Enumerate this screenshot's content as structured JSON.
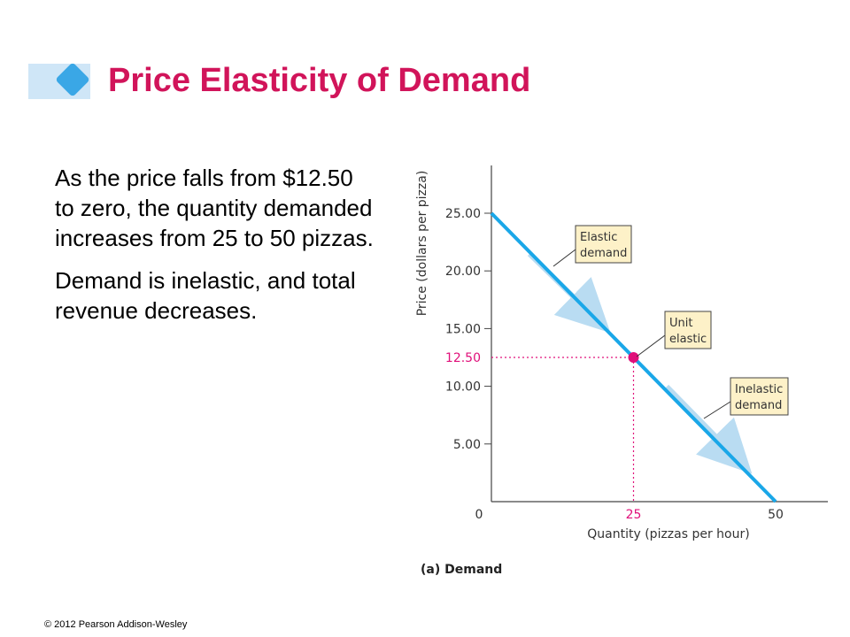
{
  "slide": {
    "title": "Price Elasticity of Demand",
    "paragraphs": [
      "As the price falls from $12.50 to zero, the quantity demanded increases from 25 to 50 pizzas.",
      "Demand is inelastic, and total revenue decreases."
    ],
    "copyright": "© 2012 Pearson Addison-Wesley"
  },
  "colors": {
    "title": "#d1145a",
    "demand_line": "#1aa7e8",
    "highlight": "#e0107a",
    "label_box": "#fdf1c8"
  },
  "chart_data": {
    "type": "line",
    "caption": "(a) Demand",
    "xlabel": "Quantity (pizzas per hour)",
    "ylabel": "Price (dollars per pizza)",
    "xlim": [
      0,
      50
    ],
    "ylim": [
      0,
      25
    ],
    "x_ticks": [
      "0",
      "25",
      "50"
    ],
    "y_ticks": [
      "5.00",
      "10.00",
      "15.00",
      "20.00",
      "25.00"
    ],
    "highlight_tick_y": "12.50",
    "series": [
      {
        "points": [
          [
            0,
            25
          ],
          [
            50,
            0
          ]
        ]
      }
    ],
    "marked_point": {
      "x": 25,
      "y": 12.5
    },
    "annotations": [
      {
        "text": [
          "Elastic",
          "demand"
        ]
      },
      {
        "text": [
          "Unit",
          "elastic"
        ]
      },
      {
        "text": [
          "Inelastic",
          "demand"
        ]
      }
    ],
    "grid": false
  }
}
